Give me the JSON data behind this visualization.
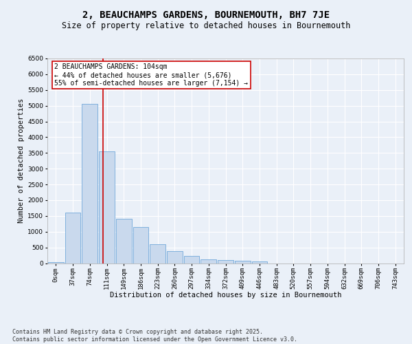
{
  "title": "2, BEAUCHAMPS GARDENS, BOURNEMOUTH, BH7 7JE",
  "subtitle": "Size of property relative to detached houses in Bournemouth",
  "xlabel": "Distribution of detached houses by size in Bournemouth",
  "ylabel": "Number of detached properties",
  "bar_color": "#c9d9ed",
  "bar_edge_color": "#5b9bd5",
  "bin_labels": [
    "0sqm",
    "37sqm",
    "74sqm",
    "111sqm",
    "149sqm",
    "186sqm",
    "223sqm",
    "260sqm",
    "297sqm",
    "334sqm",
    "372sqm",
    "409sqm",
    "446sqm",
    "483sqm",
    "520sqm",
    "557sqm",
    "594sqm",
    "632sqm",
    "669sqm",
    "706sqm",
    "743sqm"
  ],
  "bar_values": [
    30,
    1600,
    5050,
    3550,
    1400,
    1150,
    600,
    390,
    230,
    130,
    100,
    80,
    50,
    0,
    0,
    0,
    0,
    0,
    0,
    0,
    0
  ],
  "ylim": [
    0,
    6500
  ],
  "yticks": [
    0,
    500,
    1000,
    1500,
    2000,
    2500,
    3000,
    3500,
    4000,
    4500,
    5000,
    5500,
    6000,
    6500
  ],
  "vline_x": 2.78,
  "vline_color": "#cc0000",
  "annotation_text": "2 BEAUCHAMPS GARDENS: 104sqm\n← 44% of detached houses are smaller (5,676)\n55% of semi-detached houses are larger (7,154) →",
  "annotation_box_color": "#ffffff",
  "annotation_box_edge": "#cc0000",
  "background_color": "#eaf0f8",
  "footer_text": "Contains HM Land Registry data © Crown copyright and database right 2025.\nContains public sector information licensed under the Open Government Licence v3.0.",
  "grid_color": "#ffffff",
  "title_fontsize": 10,
  "subtitle_fontsize": 8.5,
  "axis_label_fontsize": 7.5,
  "tick_fontsize": 6.5,
  "annotation_fontsize": 7,
  "footer_fontsize": 6
}
